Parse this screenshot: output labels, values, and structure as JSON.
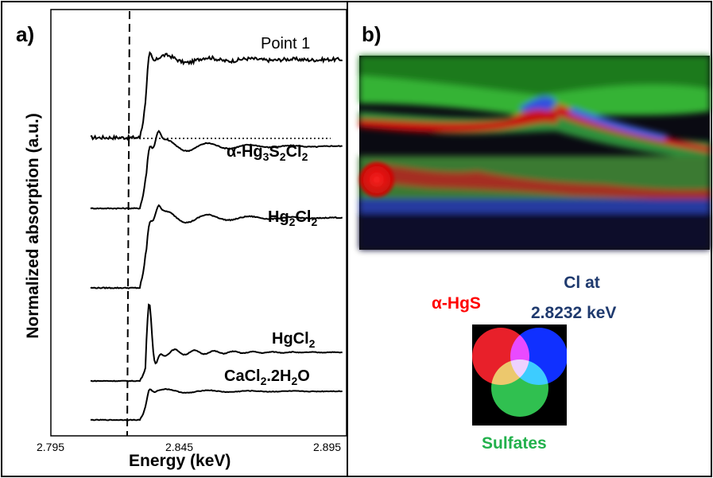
{
  "panel_a_label": "a)",
  "panel_b_label": "b)",
  "chart_data": {
    "type": "line",
    "xlabel": "Energy (keV)",
    "ylabel": "Normalized absorption (a.u.)",
    "xlim": [
      2.795,
      2.895
    ],
    "x_ticks": [
      "2.795",
      "2.845",
      "2.895"
    ],
    "edge_marker_energy": 2.8232,
    "series": [
      {
        "name": "Point 1",
        "label_main": "Point 1",
        "label_parts": [],
        "color": "#000000"
      },
      {
        "name": "α-Hg3S2Cl2",
        "label_parts": [
          [
            "α-Hg",
            "n"
          ],
          [
            "3",
            "sub"
          ],
          [
            "S",
            "n"
          ],
          [
            "2",
            "sub"
          ],
          [
            "Cl",
            "n"
          ],
          [
            "2",
            "sub"
          ]
        ],
        "color": "#000000"
      },
      {
        "name": "Hg2Cl2",
        "label_parts": [
          [
            "Hg",
            "n"
          ],
          [
            "2",
            "sub"
          ],
          [
            "Cl",
            "n"
          ],
          [
            "2",
            "sub"
          ]
        ],
        "color": "#000000"
      },
      {
        "name": "HgCl2",
        "label_parts": [
          [
            "HgCl",
            "n"
          ],
          [
            "2",
            "sub"
          ]
        ],
        "color": "#000000"
      },
      {
        "name": "CaCl2.2H2O",
        "label_parts": [
          [
            "CaCl",
            "n"
          ],
          [
            "2",
            "sub"
          ],
          [
            ".2H",
            "n"
          ],
          [
            "2",
            "sub"
          ],
          [
            "O",
            "n"
          ]
        ],
        "color": "#000000"
      }
    ]
  },
  "legend": {
    "red_label": "α-HgS",
    "blue_label_line1": "Cl at",
    "blue_label_line2": "2.8232 keV",
    "green_label": "Sulfates",
    "red_color": "#ff0000",
    "blue_color": "#1f3a6e",
    "green_color": "#22b14c"
  }
}
